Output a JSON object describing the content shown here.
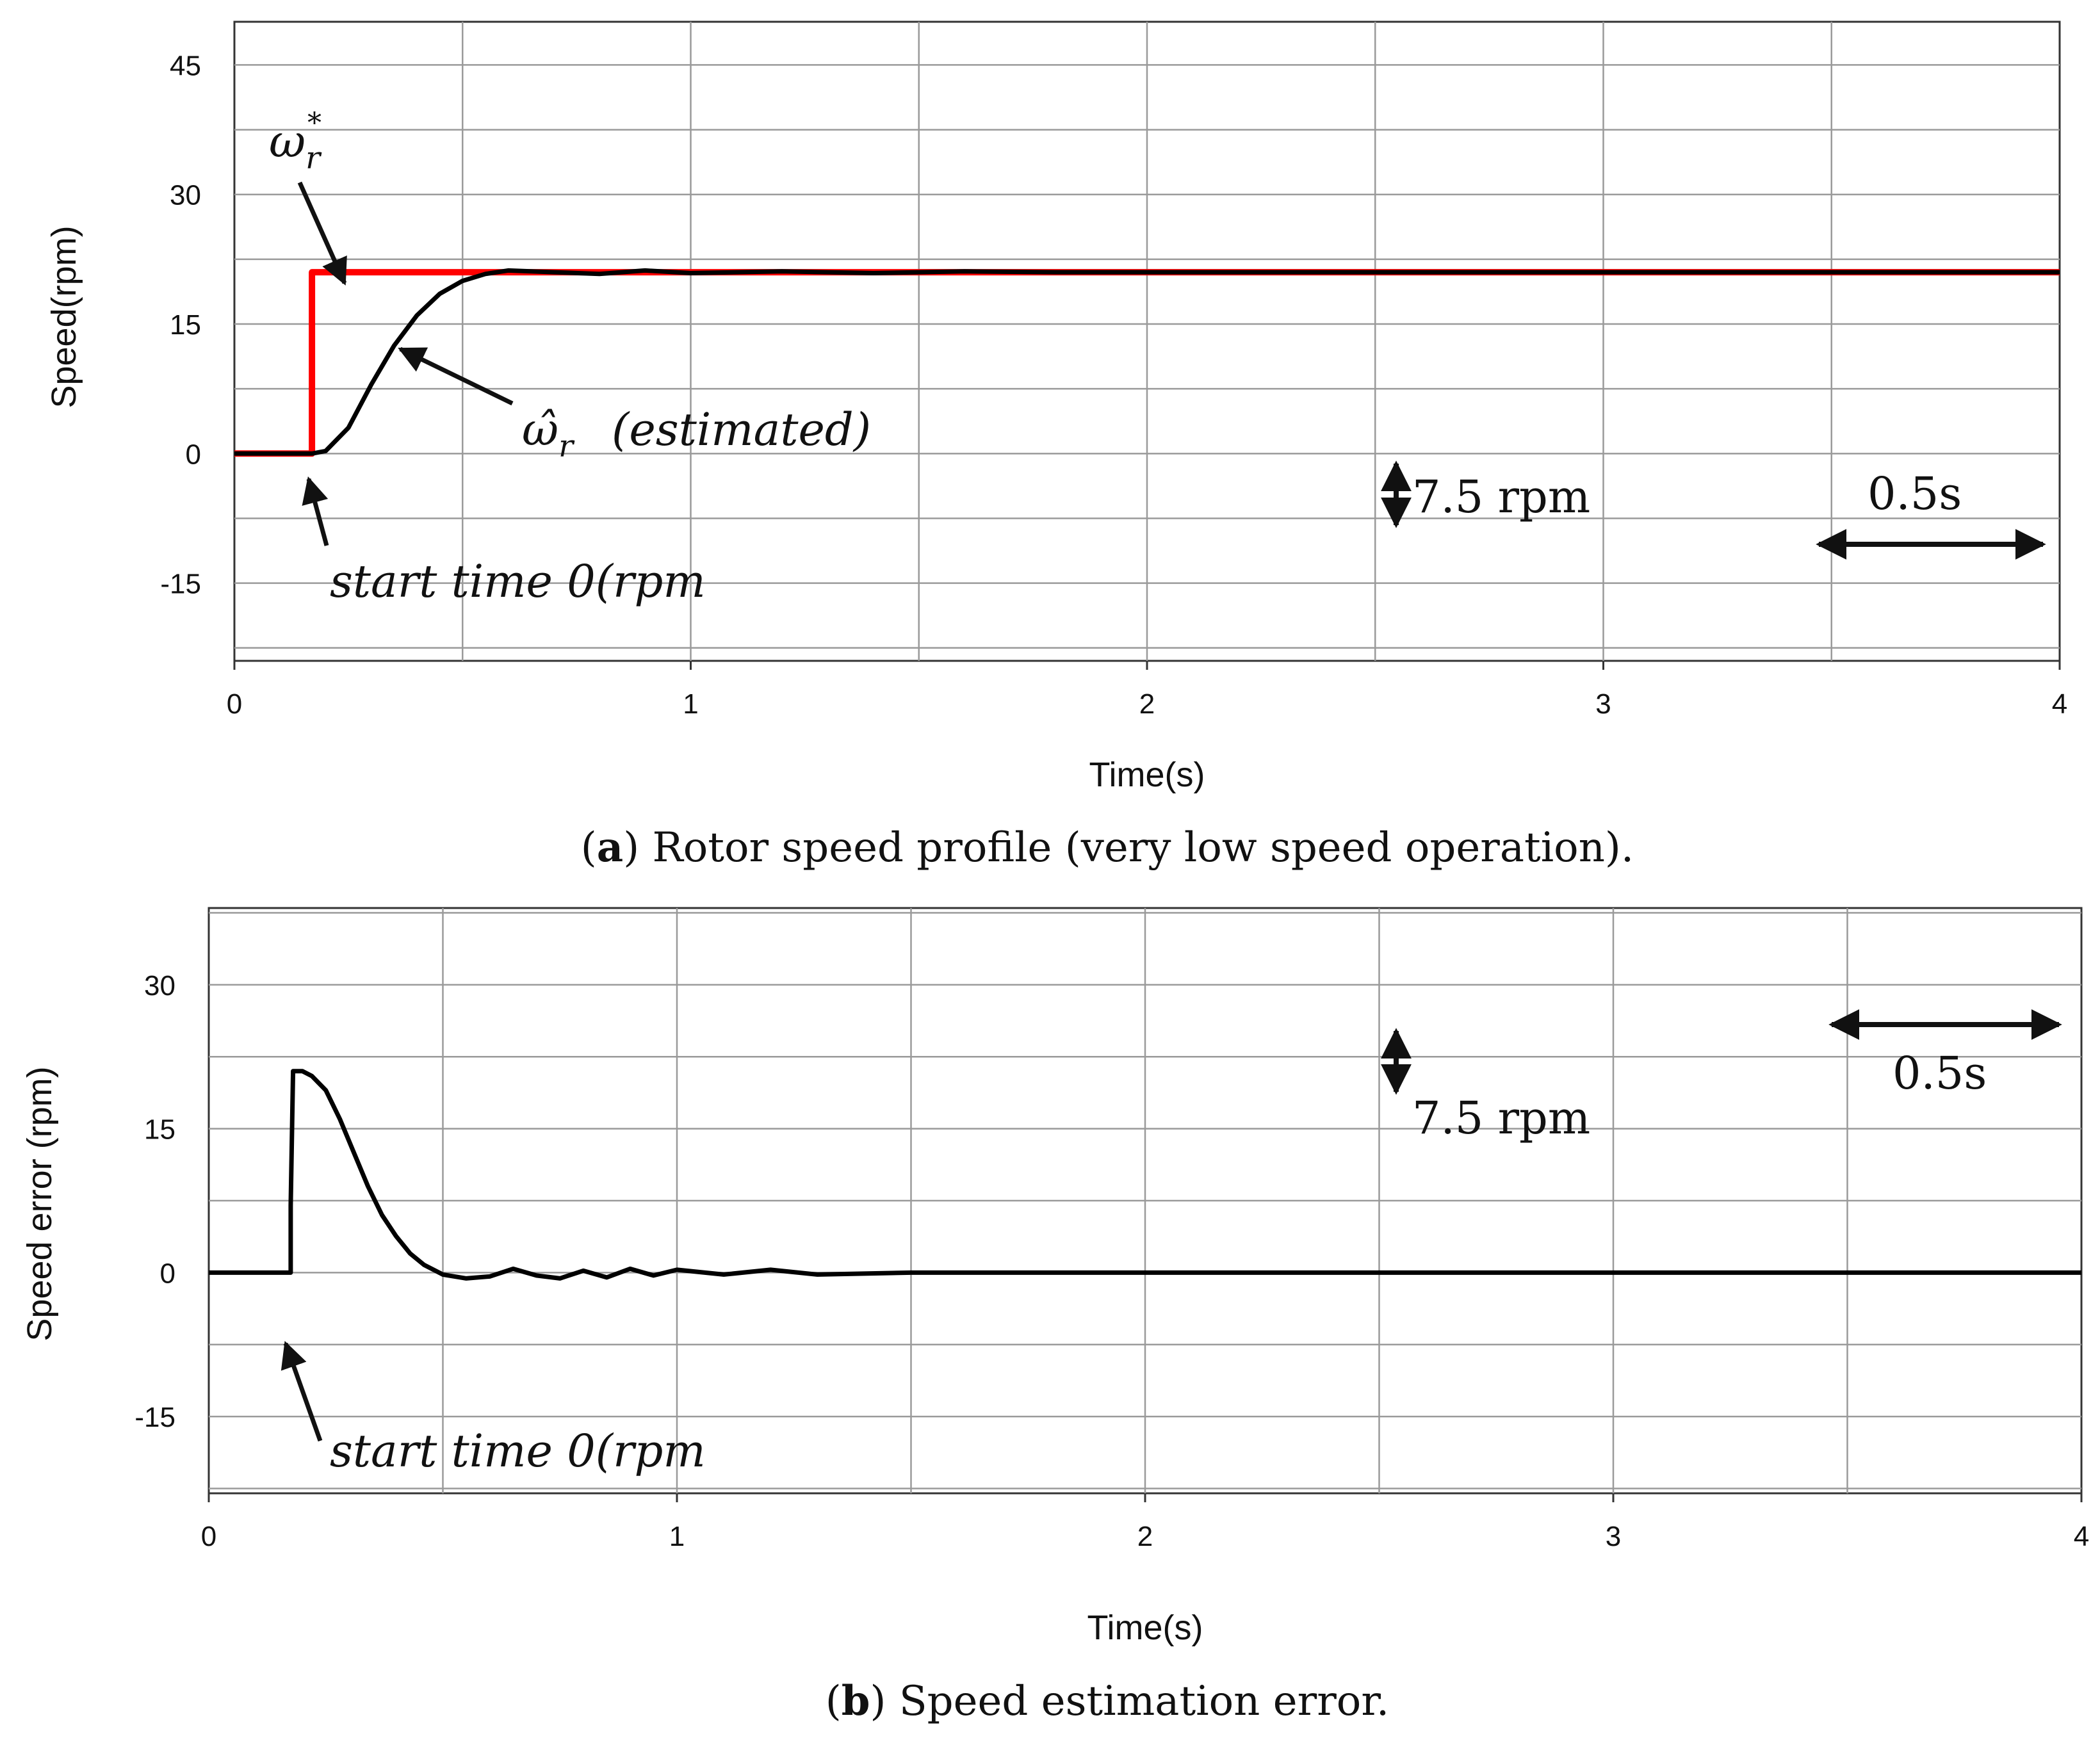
{
  "chart_data": [
    {
      "type": "line",
      "panel": "a",
      "caption": {
        "letter": "a",
        "text": "Rotor speed profile (very low speed operation)."
      },
      "xlabel": "Time(s)",
      "ylabel": "Speed(rpm)",
      "xlim": [
        0,
        4
      ],
      "ylim": [
        -24,
        50
      ],
      "xticks": [
        0,
        1,
        2,
        3,
        4
      ],
      "yticks": [
        -15,
        0,
        15,
        30,
        45
      ],
      "grid": true,
      "series": [
        {
          "name": "ω*r (reference)",
          "color": "#ff0000",
          "x": [
            0,
            0.17,
            0.17,
            4
          ],
          "y": [
            0,
            0,
            21,
            21
          ]
        },
        {
          "name": "ω̂r (estimated)",
          "color": "#000000",
          "x": [
            0,
            0.17,
            0.2,
            0.25,
            0.3,
            0.35,
            0.4,
            0.45,
            0.5,
            0.55,
            0.6,
            0.7,
            0.8,
            0.9,
            1.0,
            1.2,
            1.4,
            1.6,
            1.8,
            2.0,
            2.5,
            3.0,
            3.5,
            4.0
          ],
          "y": [
            0,
            0,
            0.3,
            3,
            8,
            12.5,
            16,
            18.5,
            20,
            20.8,
            21.2,
            21.0,
            20.8,
            21.2,
            20.9,
            21.1,
            20.9,
            21.1,
            21.0,
            21.0,
            21.0,
            21.0,
            21.0,
            21.0
          ]
        }
      ],
      "annotations": {
        "ref_label": "ω",
        "ref_sub": "r",
        "ref_sup": "*",
        "est_label": "ω̂",
        "est_sub": "r",
        "est_text": "(estimated)",
        "start": "start   time   0(rpm",
        "scale_y": "7.5  rpm",
        "scale_x": "0.5s"
      }
    },
    {
      "type": "line",
      "panel": "b",
      "caption": {
        "letter": "b",
        "text": "Speed estimation error."
      },
      "xlabel": "Time(s)",
      "ylabel": "Speed error (rpm)",
      "xlim": [
        0,
        4
      ],
      "ylim": [
        -23,
        38
      ],
      "xticks": [
        0,
        1,
        2,
        3,
        4
      ],
      "yticks": [
        -15,
        0,
        15,
        30
      ],
      "grid": true,
      "series": [
        {
          "name": "Speed error",
          "color": "#000000",
          "x": [
            0,
            0.17,
            0.175,
            0.175,
            0.18,
            0.2,
            0.22,
            0.25,
            0.28,
            0.31,
            0.34,
            0.37,
            0.4,
            0.43,
            0.46,
            0.5,
            0.55,
            0.6,
            0.65,
            0.7,
            0.75,
            0.8,
            0.85,
            0.9,
            0.95,
            1.0,
            1.1,
            1.2,
            1.3,
            1.5,
            2.0,
            2.5,
            3.0,
            3.5,
            4.0
          ],
          "y": [
            0,
            0,
            0,
            7,
            21,
            21,
            20.5,
            19,
            16,
            12.5,
            9,
            6,
            3.8,
            2.0,
            0.8,
            -0.2,
            -0.6,
            -0.4,
            0.4,
            -0.3,
            -0.6,
            0.2,
            -0.5,
            0.4,
            -0.3,
            0.3,
            -0.2,
            0.3,
            -0.2,
            0,
            0,
            0,
            0,
            0,
            0
          ]
        }
      ],
      "annotations": {
        "start": "start   time   0(rpm",
        "scale_y": "7.5  rpm",
        "scale_x": "0.5s"
      }
    }
  ]
}
